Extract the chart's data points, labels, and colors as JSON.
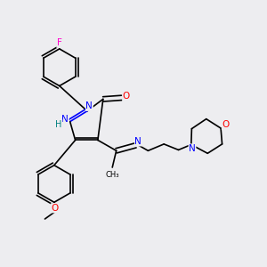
{
  "background_color": "#ededf0",
  "atom_colors": {
    "C": "#000000",
    "N": "#0000ff",
    "O": "#ff0000",
    "F": "#ff00cc",
    "H": "#008080"
  },
  "bond_color": "#000000",
  "figsize": [
    3.0,
    3.0
  ],
  "dpi": 100
}
